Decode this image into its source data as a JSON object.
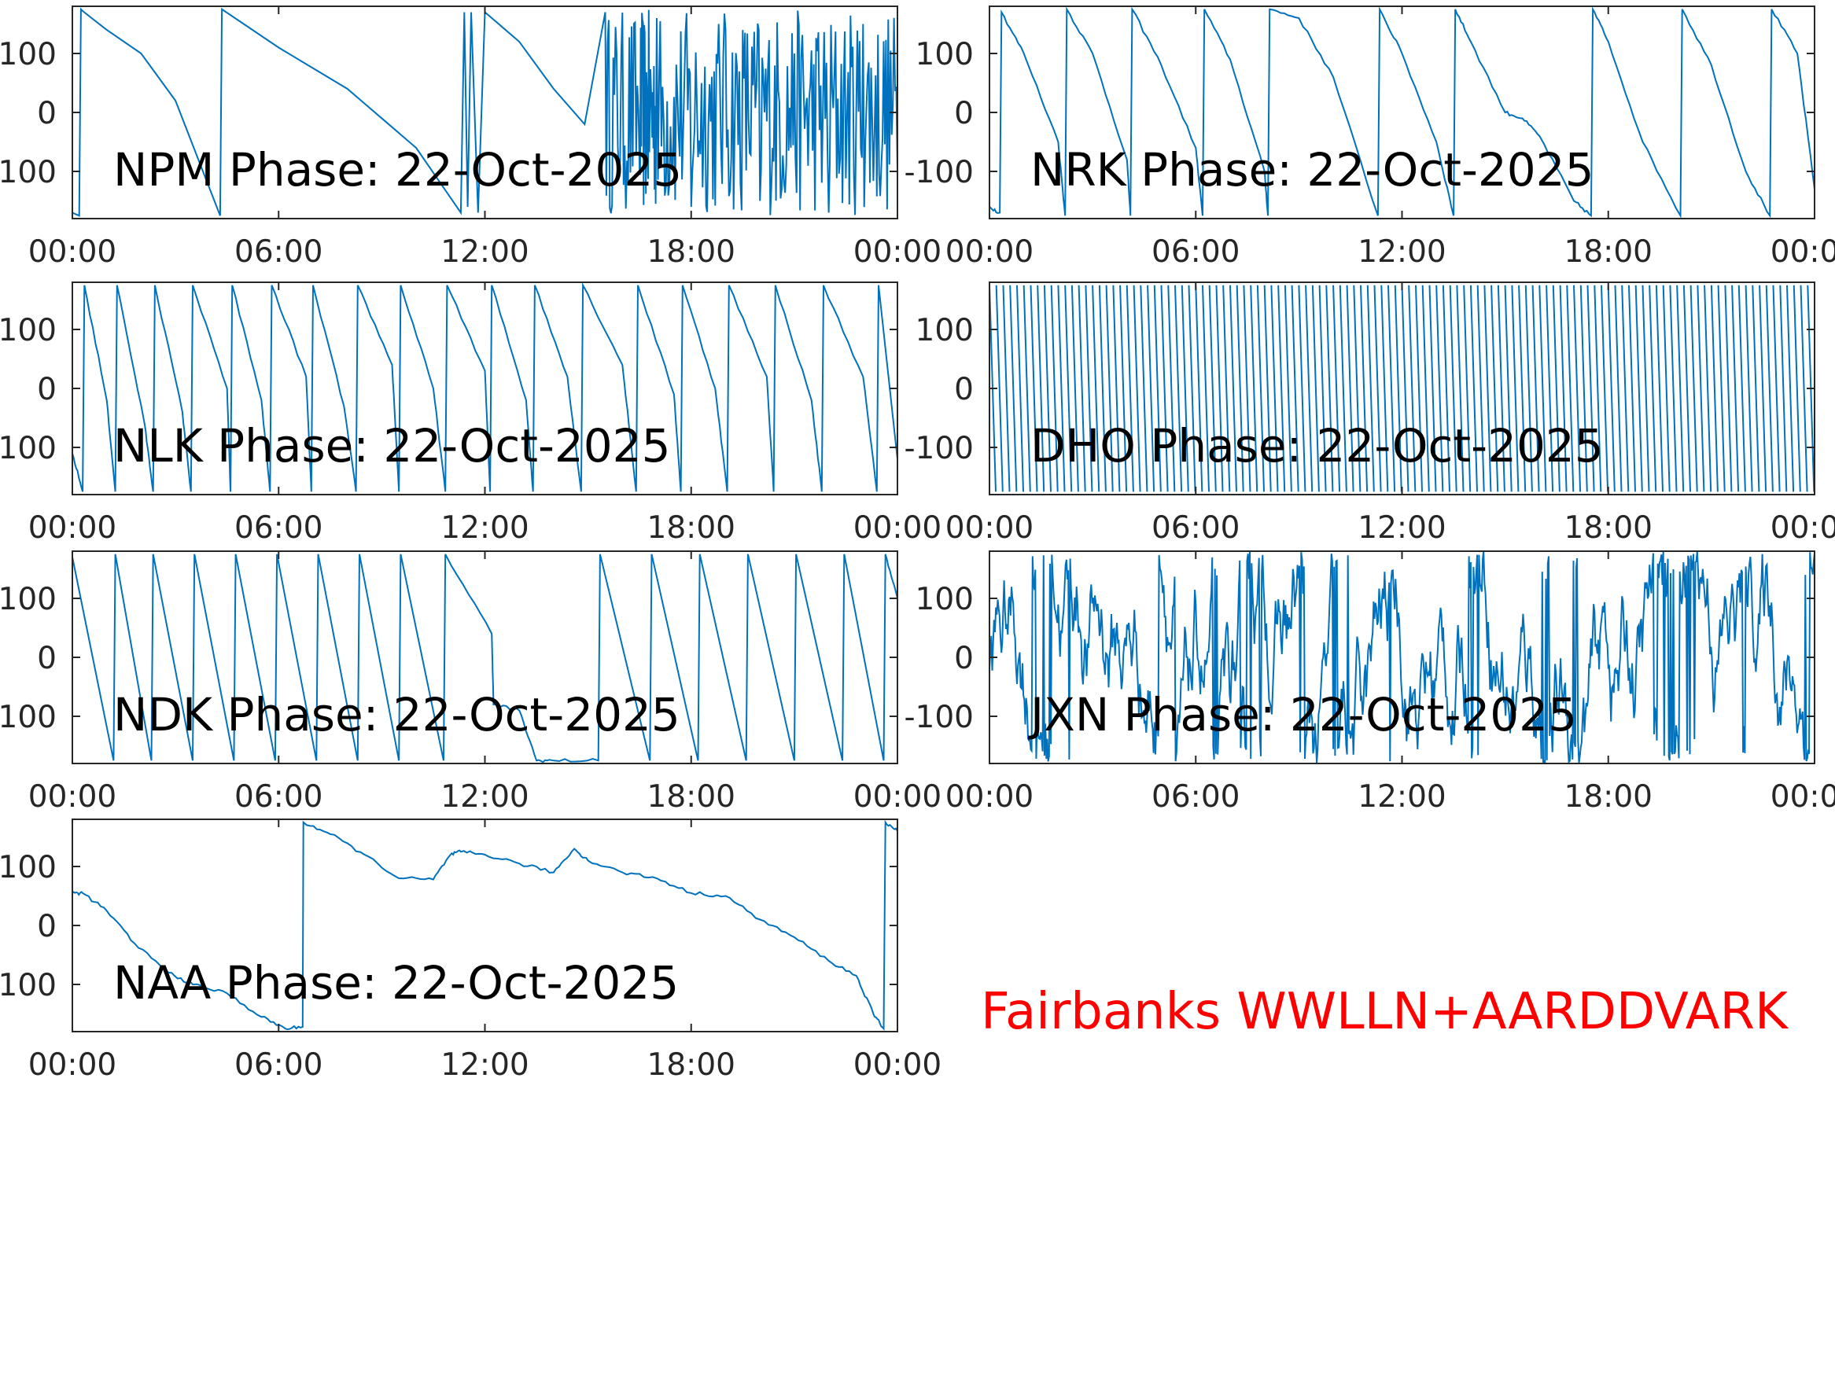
{
  "figure": {
    "banner": "Fairbanks WWLLN+AARDDVARK",
    "banner_color": "#ff0000",
    "line_color": "#0072bd",
    "axis_color": "#262626"
  },
  "chart_data": [
    {
      "type": "line",
      "station": "NPM",
      "title": "NPM Phase: 22-Oct-2025",
      "xlim": [
        "00:00",
        "24:00"
      ],
      "ylim": [
        -180,
        180
      ],
      "xticks": [
        "00:00",
        "06:00",
        "12:00",
        "18:00",
        "00:00"
      ],
      "yticks": [
        "-100",
        "0",
        "100"
      ],
      "x_hours": [
        0,
        0.2,
        0.25,
        0.3,
        1,
        2,
        3,
        4.3,
        4.35,
        6,
        8,
        10,
        11.3,
        11.4,
        11.5,
        11.6,
        11.8,
        12,
        13,
        14,
        14.9,
        15.5,
        16.5,
        17,
        18,
        19,
        20,
        21,
        22,
        23,
        24
      ],
      "phase_deg": [
        -170,
        -175,
        175,
        172,
        140,
        100,
        20,
        -175,
        175,
        110,
        40,
        -60,
        -170,
        170,
        -160,
        170,
        -170,
        170,
        120,
        40,
        -20,
        170,
        -100,
        160,
        -160,
        140,
        -150,
        100,
        -170,
        150,
        -100
      ],
      "regime": "sawtooth then erratic after ~15:00"
    },
    {
      "type": "line",
      "station": "NRK",
      "title": "NRK Phase: 22-Oct-2025",
      "xlim": [
        "00:00",
        "24:00"
      ],
      "ylim": [
        -180,
        180
      ],
      "xticks": [
        "00:00",
        "06:00",
        "12:00",
        "18:00",
        "00:00"
      ],
      "yticks": [
        "-100",
        "0",
        "100"
      ],
      "x_hours": [
        0,
        0.3,
        0.35,
        1,
        2,
        2.2,
        2.25,
        3,
        4,
        4.1,
        4.15,
        5,
        6,
        6.2,
        6.25,
        7,
        8,
        8.1,
        8.15,
        9,
        10,
        11.3,
        11.35,
        12,
        13,
        13.5,
        13.55,
        14,
        15,
        15.5,
        16,
        17,
        17.5,
        17.55,
        18,
        19,
        20.1,
        20.15,
        21,
        22,
        22.7,
        22.75,
        23.5,
        24
      ],
      "phase_deg": [
        -160,
        -170,
        170,
        100,
        -50,
        -175,
        175,
        100,
        -80,
        -175,
        175,
        80,
        -60,
        -175,
        175,
        90,
        -100,
        -175,
        175,
        160,
        60,
        -175,
        175,
        100,
        -50,
        -175,
        175,
        120,
        0,
        -10,
        -40,
        -150,
        -175,
        175,
        120,
        -50,
        -175,
        175,
        80,
        -100,
        -175,
        175,
        100,
        -130
      ],
      "regime": "sawtooth"
    },
    {
      "type": "line",
      "station": "NLK",
      "title": "NLK Phase: 22-Oct-2025",
      "xlim": [
        "00:00",
        "24:00"
      ],
      "ylim": [
        -180,
        180
      ],
      "xticks": [
        "00:00",
        "06:00",
        "12:00",
        "18:00",
        "00:00"
      ],
      "yticks": [
        "-100",
        "0",
        "100"
      ],
      "x_hours": [
        0,
        0.3,
        0.35,
        1.0,
        1.25,
        1.3,
        2.1,
        2.35,
        2.4,
        3.2,
        3.45,
        3.5,
        4.5,
        4.6,
        4.65,
        5.5,
        5.75,
        5.8,
        6.8,
        6.95,
        7.0,
        7.9,
        8.25,
        8.3,
        9.3,
        9.5,
        9.55,
        10.5,
        10.85,
        10.9,
        12.0,
        12.15,
        12.2,
        13.2,
        13.4,
        13.45,
        14.4,
        14.8,
        14.85,
        16.0,
        16.4,
        16.45,
        17.5,
        17.7,
        17.75,
        18.7,
        19.05,
        19.1,
        20.2,
        20.4,
        20.45,
        21.5,
        21.8,
        21.85,
        23.0,
        23.4,
        23.45,
        24.0
      ],
      "phase_deg": [
        -110,
        -175,
        175,
        -20,
        -175,
        175,
        -60,
        -175,
        175,
        -40,
        -175,
        175,
        0,
        -175,
        175,
        -20,
        -175,
        175,
        20,
        -175,
        175,
        -30,
        -175,
        175,
        40,
        -175,
        175,
        0,
        -175,
        175,
        30,
        -175,
        175,
        -20,
        -175,
        175,
        20,
        -175,
        175,
        40,
        -175,
        175,
        -10,
        -175,
        175,
        0,
        -175,
        175,
        20,
        -175,
        175,
        -20,
        -175,
        175,
        20,
        -175,
        175,
        -120
      ],
      "regime": "sawtooth"
    },
    {
      "type": "line",
      "station": "DHO",
      "title": "DHO Phase: 22-Oct-2025",
      "xlim": [
        "00:00",
        "24:00"
      ],
      "ylim": [
        -180,
        180
      ],
      "xticks": [
        "00:00",
        "06:00",
        "12:00",
        "18:00",
        "00:00"
      ],
      "yticks": [
        "-100",
        "0",
        "100"
      ],
      "wrap_period_hours": 0.2,
      "regime": "rapid phase wrap across full day, slight disturbance near 07:00"
    },
    {
      "type": "line",
      "station": "NDK",
      "title": "NDK Phase: 22-Oct-2025",
      "xlim": [
        "00:00",
        "24:00"
      ],
      "ylim": [
        -180,
        180
      ],
      "xticks": [
        "00:00",
        "06:00",
        "12:00",
        "18:00",
        "00:00"
      ],
      "yticks": [
        "-100",
        "0",
        "100"
      ],
      "x_hours": [
        0,
        1.2,
        1.25,
        2.3,
        2.35,
        3.5,
        3.55,
        4.7,
        4.75,
        5.9,
        5.95,
        7.1,
        7.15,
        8.3,
        8.35,
        9.5,
        9.55,
        10.8,
        10.85,
        12.2,
        12.25,
        13,
        13.5,
        14,
        15.3,
        15.35,
        16.8,
        16.85,
        18.2,
        18.25,
        19.6,
        19.65,
        21.0,
        21.05,
        22.4,
        22.45,
        23.6,
        23.65,
        24
      ],
      "phase_deg": [
        170,
        -175,
        175,
        -175,
        175,
        -175,
        175,
        -175,
        175,
        -175,
        175,
        -175,
        175,
        -175,
        175,
        -175,
        175,
        -175,
        175,
        40,
        -80,
        -90,
        -175,
        -175,
        -175,
        175,
        -175,
        175,
        -175,
        175,
        -175,
        175,
        -175,
        175,
        -175,
        175,
        -175,
        175,
        100
      ],
      "regime": "sawtooth"
    },
    {
      "type": "line",
      "station": "JXN",
      "title": "JXN Phase: 22-Oct-2025",
      "xlim": [
        "00:00",
        "24:00"
      ],
      "ylim": [
        -180,
        180
      ],
      "xticks": [
        "00:00",
        "06:00",
        "12:00",
        "18:00",
        "00:00"
      ],
      "yticks": [
        "-100",
        "0",
        "100"
      ],
      "regime": "erratic noise across full range"
    },
    {
      "type": "line",
      "station": "NAA",
      "title": "NAA Phase: 22-Oct-2025",
      "xlim": [
        "00:00",
        "24:00"
      ],
      "ylim": [
        -180,
        180
      ],
      "xticks": [
        "00:00",
        "06:00",
        "12:00",
        "18:00",
        "00:00"
      ],
      "yticks": [
        "-100",
        "0",
        "100"
      ],
      "x_hours": [
        0,
        0.3,
        1.0,
        1.8,
        2.8,
        3.5,
        4.5,
        5.5,
        6.2,
        6.7,
        6.72,
        7.5,
        8.5,
        9.5,
        10.5,
        11.0,
        11.3,
        12.0,
        13.0,
        14.0,
        14.6,
        15.0,
        16.0,
        17.0,
        18.0,
        19.0,
        20.0,
        21.0,
        22.0,
        22.8,
        23.3,
        23.6,
        23.65,
        24.0
      ],
      "phase_deg": [
        55,
        55,
        25,
        -30,
        -80,
        -100,
        -115,
        -155,
        -175,
        -172,
        175,
        155,
        120,
        80,
        78,
        120,
        125,
        120,
        105,
        90,
        130,
        110,
        90,
        80,
        55,
        50,
        10,
        -20,
        -60,
        -85,
        -150,
        -175,
        175,
        160
      ],
      "regime": "slow drift"
    }
  ]
}
